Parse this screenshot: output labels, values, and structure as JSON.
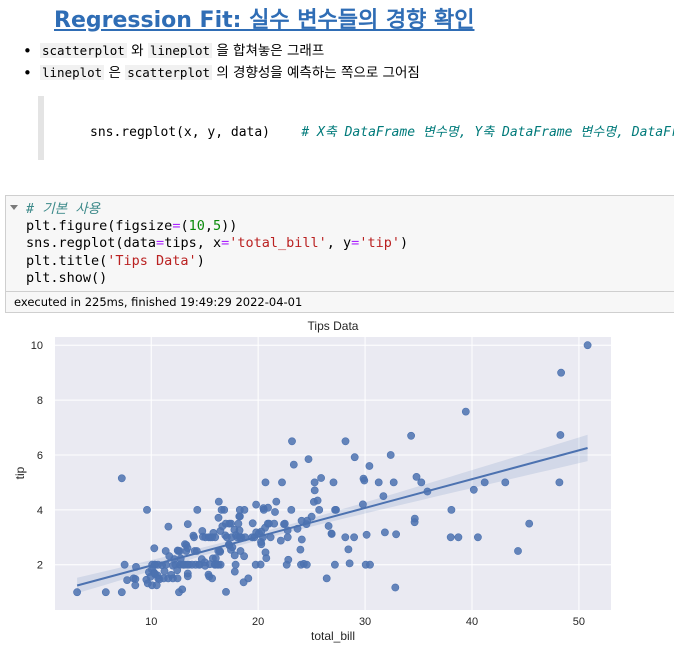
{
  "markdown": {
    "title": "Regression Fit: 실수 변수들의 경향 확인",
    "bullets": [
      {
        "code1": "scatterplot",
        "mid": " 와 ",
        "code2": "lineplot",
        "tail": " 을 합쳐놓은 그래프"
      },
      {
        "code1": "lineplot",
        "mid": " 은 ",
        "code2": "scatterplot",
        "tail": " 의 경향성을 예측하는 쪽으로 그어짐"
      }
    ],
    "code_example": "sns.regplot(x, y, data)",
    "code_comment": "# X축 DataFrame 변수명, Y축 DataFrame 변수명, DataFrame"
  },
  "cell": {
    "comment": "# 기본 사용",
    "line2_a": "plt.figure(figsize",
    "line2_op": "=",
    "line2_b": "(",
    "line2_n1": "10",
    "line2_c": ",",
    "line2_n2": "5",
    "line2_d": "))",
    "line3_a": "sns.regplot(data",
    "line3_op1": "=",
    "line3_b": "tips, x",
    "line3_op2": "=",
    "line3_s1": "'total_bill'",
    "line3_c": ", y",
    "line3_op3": "=",
    "line3_s2": "'tip'",
    "line3_d": ")",
    "line4_a": "plt.title(",
    "line4_s": "'Tips Data'",
    "line4_b": ")",
    "line5": "plt.show()",
    "exec_text": "executed in 225ms, finished 19:49:29 2022-04-01"
  },
  "chart_data": {
    "type": "scatter",
    "title": "Tips Data",
    "xlabel": "total_bill",
    "ylabel": "tip",
    "xlim": [
      1.0,
      53.0
    ],
    "ylim": [
      0.35,
      10.3
    ],
    "xticks": [
      10,
      20,
      30,
      40,
      50
    ],
    "yticks": [
      2,
      4,
      6,
      8,
      10
    ],
    "grid": true,
    "points": [
      [
        3.07,
        1.0
      ],
      [
        5.75,
        1.0
      ],
      [
        7.25,
        1.0
      ],
      [
        7.25,
        5.15
      ],
      [
        7.51,
        2.0
      ],
      [
        7.74,
        1.44
      ],
      [
        8.35,
        1.5
      ],
      [
        8.51,
        1.25
      ],
      [
        8.52,
        1.48
      ],
      [
        8.58,
        1.92
      ],
      [
        9.55,
        1.45
      ],
      [
        9.6,
        4.0
      ],
      [
        9.68,
        1.32
      ],
      [
        9.78,
        1.73
      ],
      [
        9.94,
        1.56
      ],
      [
        10.07,
        1.25
      ],
      [
        10.07,
        1.83
      ],
      [
        10.09,
        2.0
      ],
      [
        10.27,
        1.71
      ],
      [
        10.29,
        2.6
      ],
      [
        10.33,
        1.67
      ],
      [
        10.33,
        2.0
      ],
      [
        10.34,
        1.66
      ],
      [
        10.34,
        2.0
      ],
      [
        10.51,
        1.25
      ],
      [
        10.59,
        1.61
      ],
      [
        10.63,
        2.0
      ],
      [
        10.65,
        1.5
      ],
      [
        10.77,
        1.47
      ],
      [
        11.02,
        1.98
      ],
      [
        11.17,
        1.5
      ],
      [
        11.24,
        1.76
      ],
      [
        11.35,
        2.5
      ],
      [
        11.38,
        2.0
      ],
      [
        11.59,
        1.5
      ],
      [
        11.61,
        3.39
      ],
      [
        11.69,
        2.31
      ],
      [
        11.87,
        1.63
      ],
      [
        12.02,
        1.97
      ],
      [
        12.03,
        1.5
      ],
      [
        12.16,
        2.2
      ],
      [
        12.26,
        2.0
      ],
      [
        12.43,
        1.8
      ],
      [
        12.46,
        1.5
      ],
      [
        12.48,
        2.52
      ],
      [
        12.54,
        2.5
      ],
      [
        12.6,
        1.0
      ],
      [
        12.66,
        2.5
      ],
      [
        12.69,
        2.0
      ],
      [
        12.74,
        2.01
      ],
      [
        12.76,
        2.23
      ],
      [
        12.9,
        1.1
      ],
      [
        13.0,
        2.0
      ],
      [
        13.03,
        2.0
      ],
      [
        13.13,
        2.0
      ],
      [
        13.16,
        2.75
      ],
      [
        13.27,
        2.5
      ],
      [
        13.28,
        2.72
      ],
      [
        13.37,
        2.0
      ],
      [
        13.39,
        2.61
      ],
      [
        13.42,
        1.58
      ],
      [
        13.42,
        1.68
      ],
      [
        13.42,
        3.48
      ],
      [
        13.51,
        2.0
      ],
      [
        13.81,
        2.0
      ],
      [
        13.94,
        3.06
      ],
      [
        14.0,
        3.0
      ],
      [
        14.07,
        2.5
      ],
      [
        14.15,
        2.0
      ],
      [
        14.26,
        2.5
      ],
      [
        14.31,
        4.0
      ],
      [
        14.48,
        2.0
      ],
      [
        14.52,
        2.0
      ],
      [
        14.73,
        2.2
      ],
      [
        14.78,
        3.23
      ],
      [
        14.83,
        3.02
      ],
      [
        15.01,
        2.09
      ],
      [
        15.04,
        1.96
      ],
      [
        15.06,
        3.0
      ],
      [
        15.36,
        1.64
      ],
      [
        15.38,
        3.0
      ],
      [
        15.42,
        1.57
      ],
      [
        15.48,
        2.02
      ],
      [
        15.53,
        3.0
      ],
      [
        15.69,
        1.5
      ],
      [
        15.69,
        3.0
      ],
      [
        15.77,
        2.23
      ],
      [
        15.81,
        3.16
      ],
      [
        15.95,
        2.0
      ],
      [
        15.98,
        2.03
      ],
      [
        15.98,
        3.0
      ],
      [
        16.0,
        2.0
      ],
      [
        16.04,
        2.24
      ],
      [
        16.21,
        2.0
      ],
      [
        16.27,
        2.5
      ],
      [
        16.29,
        3.71
      ],
      [
        16.31,
        2.0
      ],
      [
        16.32,
        4.3
      ],
      [
        16.4,
        2.5
      ],
      [
        16.45,
        2.47
      ],
      [
        16.47,
        3.23
      ],
      [
        16.49,
        2.0
      ],
      [
        16.58,
        4.0
      ],
      [
        16.66,
        3.4
      ],
      [
        16.82,
        4.0
      ],
      [
        16.93,
        3.07
      ],
      [
        16.97,
        3.5
      ],
      [
        16.99,
        1.01
      ],
      [
        17.07,
        3.0
      ],
      [
        17.26,
        2.74
      ],
      [
        17.29,
        2.71
      ],
      [
        17.31,
        3.5
      ],
      [
        17.46,
        2.54
      ],
      [
        17.47,
        3.5
      ],
      [
        17.51,
        3.0
      ],
      [
        17.59,
        2.64
      ],
      [
        17.78,
        3.27
      ],
      [
        17.81,
        2.34
      ],
      [
        17.82,
        1.75
      ],
      [
        17.89,
        2.0
      ],
      [
        17.92,
        3.08
      ],
      [
        18.04,
        3.0
      ],
      [
        18.15,
        3.5
      ],
      [
        18.24,
        3.76
      ],
      [
        18.26,
        3.25
      ],
      [
        18.28,
        4.0
      ],
      [
        18.29,
        3.0
      ],
      [
        18.29,
        3.76
      ],
      [
        18.35,
        2.5
      ],
      [
        18.43,
        3.0
      ],
      [
        18.64,
        1.36
      ],
      [
        18.69,
        2.31
      ],
      [
        18.71,
        4.0
      ],
      [
        18.78,
        3.0
      ],
      [
        19.08,
        1.5
      ],
      [
        19.44,
        3.0
      ],
      [
        19.49,
        3.51
      ],
      [
        19.65,
        3.0
      ],
      [
        19.77,
        2.0
      ],
      [
        19.81,
        4.19
      ],
      [
        19.82,
        3.18
      ],
      [
        20.08,
        3.15
      ],
      [
        20.23,
        2.01
      ],
      [
        20.27,
        2.83
      ],
      [
        20.29,
        2.75
      ],
      [
        20.29,
        3.21
      ],
      [
        20.45,
        3.0
      ],
      [
        20.49,
        4.06
      ],
      [
        20.53,
        4.0
      ],
      [
        20.65,
        3.35
      ],
      [
        20.69,
        2.45
      ],
      [
        20.69,
        5.0
      ],
      [
        20.76,
        2.24
      ],
      [
        20.9,
        3.5
      ],
      [
        20.92,
        4.08
      ],
      [
        21.01,
        3.5
      ],
      [
        21.16,
        3.0
      ],
      [
        21.5,
        3.5
      ],
      [
        21.58,
        3.92
      ],
      [
        21.7,
        4.3
      ],
      [
        22.12,
        2.88
      ],
      [
        22.23,
        5.0
      ],
      [
        22.42,
        3.48
      ],
      [
        22.49,
        3.5
      ],
      [
        22.67,
        2.0
      ],
      [
        22.75,
        3.25
      ],
      [
        22.76,
        3.0
      ],
      [
        22.82,
        2.18
      ],
      [
        23.1,
        4.0
      ],
      [
        23.17,
        6.5
      ],
      [
        23.33,
        5.65
      ],
      [
        23.68,
        3.31
      ],
      [
        23.95,
        2.55
      ],
      [
        24.01,
        2.0
      ],
      [
        24.06,
        3.6
      ],
      [
        24.08,
        2.92
      ],
      [
        24.27,
        2.03
      ],
      [
        24.52,
        3.48
      ],
      [
        24.55,
        2.0
      ],
      [
        24.59,
        3.61
      ],
      [
        24.71,
        5.85
      ],
      [
        25.0,
        3.75
      ],
      [
        25.21,
        4.29
      ],
      [
        25.28,
        5.0
      ],
      [
        25.29,
        4.71
      ],
      [
        25.56,
        4.34
      ],
      [
        25.71,
        4.0
      ],
      [
        25.89,
        5.16
      ],
      [
        26.41,
        1.5
      ],
      [
        26.59,
        3.41
      ],
      [
        26.86,
        3.14
      ],
      [
        26.88,
        3.12
      ],
      [
        27.05,
        5.0
      ],
      [
        27.18,
        2.0
      ],
      [
        27.2,
        4.0
      ],
      [
        27.28,
        4.0
      ],
      [
        28.15,
        3.0
      ],
      [
        28.17,
        6.5
      ],
      [
        28.44,
        2.56
      ],
      [
        28.55,
        2.05
      ],
      [
        28.97,
        3.0
      ],
      [
        29.03,
        5.92
      ],
      [
        29.8,
        4.2
      ],
      [
        29.85,
        5.14
      ],
      [
        29.93,
        5.07
      ],
      [
        30.06,
        2.0
      ],
      [
        30.14,
        3.09
      ],
      [
        30.4,
        5.6
      ],
      [
        30.46,
        2.0
      ],
      [
        31.27,
        5.0
      ],
      [
        31.71,
        4.5
      ],
      [
        31.85,
        3.18
      ],
      [
        32.4,
        6.0
      ],
      [
        32.68,
        5.0
      ],
      [
        32.83,
        1.17
      ],
      [
        32.9,
        3.11
      ],
      [
        34.3,
        6.7
      ],
      [
        34.63,
        3.55
      ],
      [
        34.65,
        3.68
      ],
      [
        34.81,
        5.2
      ],
      [
        35.26,
        5.0
      ],
      [
        35.83,
        4.67
      ],
      [
        38.01,
        3.0
      ],
      [
        38.07,
        4.0
      ],
      [
        38.73,
        3.0
      ],
      [
        39.42,
        7.58
      ],
      [
        40.17,
        4.73
      ],
      [
        40.55,
        3.0
      ],
      [
        41.19,
        5.0
      ],
      [
        43.11,
        5.0
      ],
      [
        44.3,
        2.5
      ],
      [
        45.35,
        3.5
      ],
      [
        48.17,
        5.0
      ],
      [
        48.27,
        6.73
      ],
      [
        48.33,
        9.0
      ],
      [
        50.81,
        10.0
      ]
    ],
    "regression": {
      "intercept": 0.92,
      "slope": 0.105
    }
  }
}
